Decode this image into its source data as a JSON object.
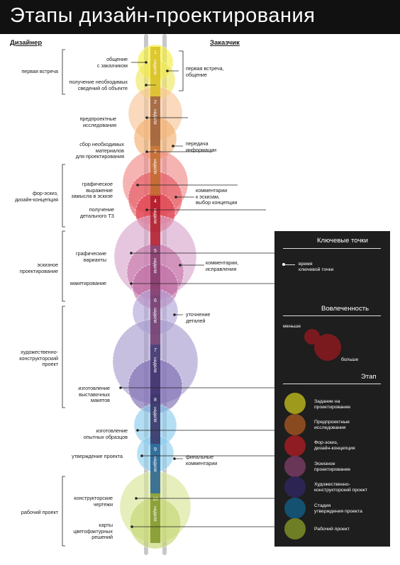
{
  "title": "Этапы дизайн-проектирования",
  "columns": {
    "designer": "Дизайнер",
    "client": "Заказчик"
  },
  "weeks": [
    {
      "num": "1",
      "word": "неделя",
      "color": "#d8c020"
    },
    {
      "num": "2",
      "word": "неделя",
      "color": "#9a5a34"
    },
    {
      "num": "3",
      "word": "неделя",
      "color": "#c06a2a"
    },
    {
      "num": "4",
      "word": "неделя",
      "color": "#b01a28"
    },
    {
      "num": "5",
      "word": "неделя",
      "color": "#823868"
    },
    {
      "num": "6",
      "word": "неделя",
      "color": "#70386a"
    },
    {
      "num": "7",
      "word": "неделя",
      "color": "#3a2e66"
    },
    {
      "num": "8",
      "word": "неделя",
      "color": "#2e2a5e"
    },
    {
      "num": "9",
      "word": "неделя",
      "color": "#1e5c8c"
    },
    {
      "num": "10",
      "word": "неделя",
      "color": "#80962a"
    }
  ],
  "stage_labels": [
    {
      "text": "первая встреча"
    },
    {
      "text": "фор-эскиз,\nдизайн-концепция"
    },
    {
      "text": "эскизное\nпроектирование"
    },
    {
      "text": "художественно-\nконструкторский\nпроект"
    },
    {
      "text": "рабочий проект"
    }
  ],
  "designer_points": [
    {
      "text": "общение\nс заказчиком"
    },
    {
      "text": "получение необходимых\nсведений об объекте"
    },
    {
      "text": "предпроектные\nисследования"
    },
    {
      "text": "сбор необходимых\nматериалов\nдля проектирования"
    },
    {
      "text": "графическое\nвыражение\nзамысла в эскизе"
    },
    {
      "text": "получение\nдетального ТЗ"
    },
    {
      "text": "графические\nварианты"
    },
    {
      "text": "макетирование"
    },
    {
      "text": "изготовление\nвыставочных\nмакетов"
    },
    {
      "text": "изготовление\nопытных образцов"
    },
    {
      "text": "утверждение проекта"
    },
    {
      "text": "конструкторские\nчертежи"
    },
    {
      "text": "карты\nцветофактурных\nрешений"
    }
  ],
  "client_points": [
    {
      "text": "первая встреча,\nобщение"
    },
    {
      "text": "передача\nинформации"
    },
    {
      "text": "комментарии\nк эскизам,\nвыбор концепции"
    },
    {
      "text": "комментарии,\nисправления"
    },
    {
      "text": "уточнение\nдеталей"
    },
    {
      "text": "финальные\nкомментарии"
    }
  ],
  "legend": {
    "key_points": {
      "title": "Ключевые точки",
      "text": "время\nключевой точки"
    },
    "involvement": {
      "title": "Вовлеченность",
      "less": "меньше",
      "more": "больше"
    },
    "stage": {
      "title": "Этап",
      "items": [
        {
          "label": "Задание на\nпроектирование",
          "color": "#9e9a1c"
        },
        {
          "label": "Предпроектные\nисследования",
          "color": "#8a4a20"
        },
        {
          "label": "Фор-эскиз,\nдизайн-концепция",
          "color": "#8e1c22"
        },
        {
          "label": "Эскизное\nпроектирование",
          "color": "#6a3658"
        },
        {
          "label": "Художественно-\nконструкторский проект",
          "color": "#2c2452"
        },
        {
          "label": "Стадия\nутверждения проекта",
          "color": "#145070"
        },
        {
          "label": "Рабочий проект",
          "color": "#6e7e24"
        }
      ]
    }
  }
}
